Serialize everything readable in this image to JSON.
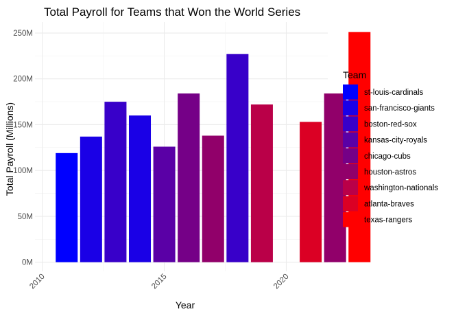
{
  "chart_data": {
    "type": "bar",
    "title": "Total Payroll for Teams that Won the World Series",
    "xlabel": "Year",
    "ylabel": "Total Payroll (Millions)",
    "xlim": [
      2009.7,
      2021.7
    ],
    "ylim": [
      -10,
      262
    ],
    "x_ticks": [
      2010,
      2015,
      2020
    ],
    "y_ticks": [
      0,
      50,
      100,
      150,
      200,
      250
    ],
    "y_tick_labels": [
      "0M",
      "50M",
      "100M",
      "150M",
      "200M",
      "250M"
    ],
    "grid": true,
    "legend_position": "right",
    "legend_title": "Team",
    "teams": [
      {
        "name": "st-louis-cardinals",
        "color": "#0000FF"
      },
      {
        "name": "san-francisco-giants",
        "color": "#1A00E6"
      },
      {
        "name": "boston-red-sox",
        "color": "#3800C9"
      },
      {
        "name": "kansas-city-royals",
        "color": "#5A00A6"
      },
      {
        "name": "chicago-cubs",
        "color": "#750087"
      },
      {
        "name": "houston-astros",
        "color": "#91006A"
      },
      {
        "name": "washington-nationals",
        "color": "#BA0048"
      },
      {
        "name": "atlanta-braves",
        "color": "#DB0024"
      },
      {
        "name": "texas-rangers",
        "color": "#FF0000"
      }
    ],
    "bars": [
      {
        "year": 2011,
        "team": "st-louis-cardinals",
        "value": 119
      },
      {
        "year": 2012,
        "team": "san-francisco-giants",
        "value": 137
      },
      {
        "year": 2013,
        "team": "boston-red-sox",
        "value": 175
      },
      {
        "year": 2014,
        "team": "san-francisco-giants",
        "value": 160
      },
      {
        "year": 2015,
        "team": "kansas-city-royals",
        "value": 126
      },
      {
        "year": 2016,
        "team": "chicago-cubs",
        "value": 184
      },
      {
        "year": 2017,
        "team": "houston-astros",
        "value": 138
      },
      {
        "year": 2018,
        "team": "boston-red-sox",
        "value": 227
      },
      {
        "year": 2019,
        "team": "washington-nationals",
        "value": 172
      },
      {
        "year": 2021,
        "team": "atlanta-braves",
        "value": 153
      },
      {
        "year": 2022,
        "team": "houston-astros",
        "value": 184
      },
      {
        "year": 2023,
        "team": "texas-rangers",
        "value": 251
      }
    ]
  }
}
